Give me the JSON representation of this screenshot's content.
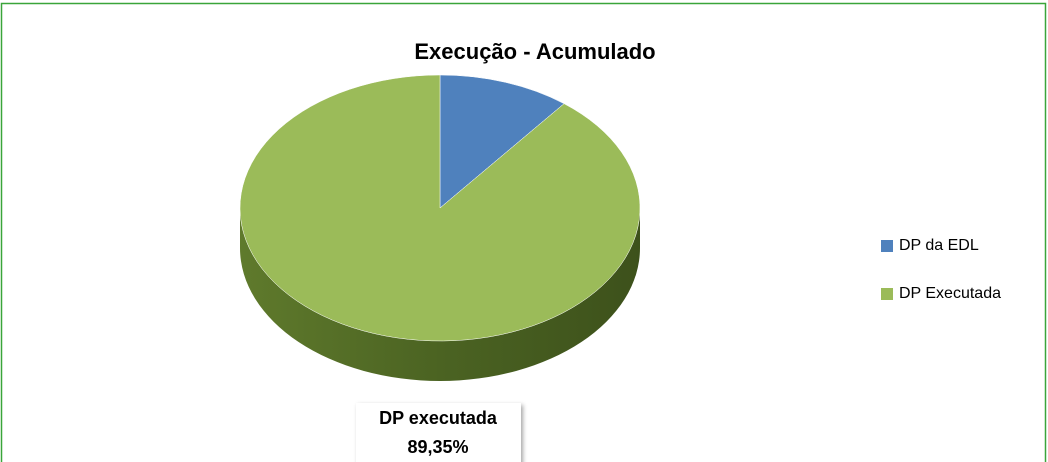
{
  "chart_data": {
    "type": "pie3d",
    "title": "Execução - Acumulado",
    "categories": [
      "DP da EDL",
      "DP Executada"
    ],
    "values": [
      10.65,
      89.35
    ],
    "colors": [
      "#4f81bd",
      "#9bbb59"
    ],
    "label_names": [
      null,
      "DP executada"
    ],
    "value_labels": [
      null,
      "89,35%"
    ],
    "legend": "right"
  }
}
